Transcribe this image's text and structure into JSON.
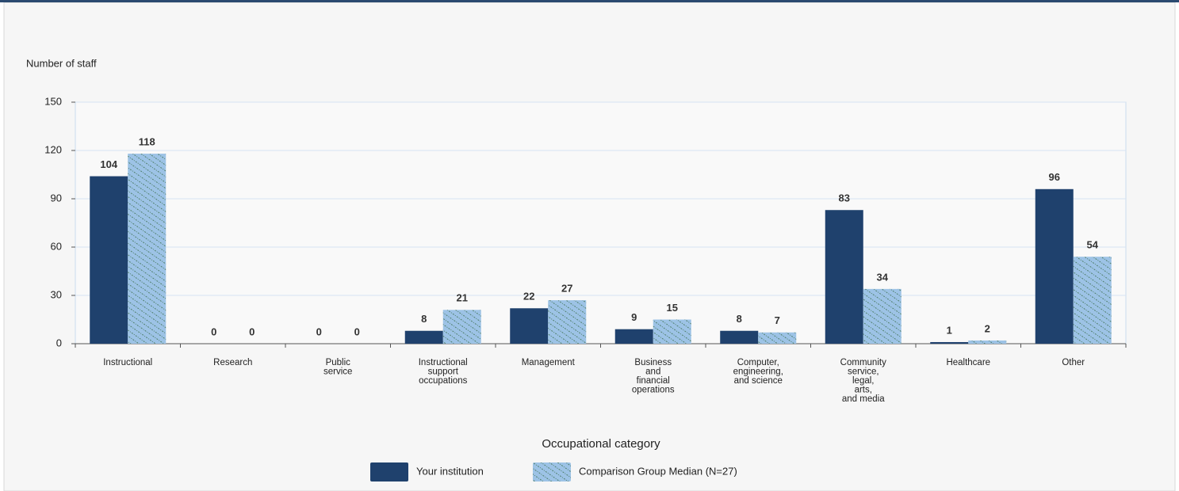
{
  "chart_data": {
    "type": "bar",
    "y_axis_label": "Number of staff",
    "x_axis_label": "Occupational category",
    "categories": [
      "Instructional",
      "Research",
      "Public\nservice",
      "Instructional\nsupport\noccupations",
      "Management",
      "Business\nand\nfinancial\noperations",
      "Computer,\nengineering,\nand science",
      "Community\nservice,\nlegal,\narts,\nand media",
      "Healthcare",
      "Other"
    ],
    "series": [
      {
        "name": "Your institution",
        "color": "#1f416d",
        "values": [
          104,
          0,
          0,
          8,
          22,
          9,
          8,
          83,
          1,
          96
        ]
      },
      {
        "name": "Comparison Group Median (N=27)",
        "color": "#9dc3e6",
        "pattern": "hatch",
        "values": [
          118,
          0,
          0,
          21,
          27,
          15,
          7,
          34,
          2,
          54
        ]
      }
    ],
    "ylim": [
      0,
      150
    ],
    "yticks": [
      0,
      30,
      60,
      90,
      120,
      150
    ],
    "grid": true,
    "legend": "bottom"
  }
}
